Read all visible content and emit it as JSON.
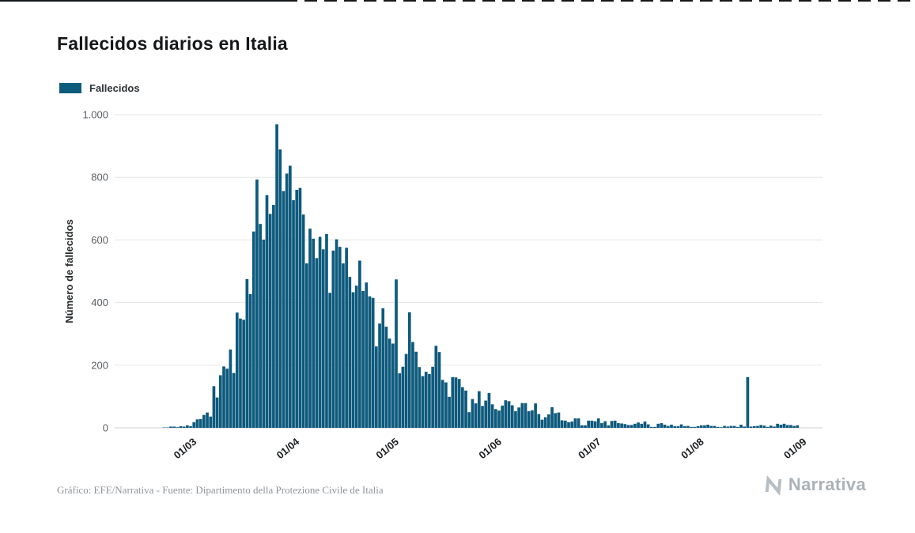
{
  "chart": {
    "title": "Fallecidos diarios en Italia",
    "legend_label": "Fallecidos",
    "ylabel": "Número de fallecidos"
  },
  "footer": {
    "credit": "Gráfico: EFE/Narrativa - Fuente: Dipartimento della Protezione Civile de Italia",
    "logo_text": "Narrativa"
  },
  "colors": {
    "bar": "#0e5a7d",
    "grid": "#e5e5e5",
    "axis_line": "#cfcfcf",
    "axis_text": "#5a5e62",
    "x_tick_text": "#1b1e20",
    "title_text": "#15181a",
    "credit_text": "#8f949a",
    "logo_text": "#aab2b9"
  },
  "chart_data": {
    "type": "bar",
    "title": "Fallecidos diarios en Italia",
    "ylabel": "Número de fallecidos",
    "xlabel": "",
    "ylim": [
      0,
      1000
    ],
    "grid": true,
    "legend_position": "top-left",
    "start_date": "22/02/2020",
    "frequency": "daily",
    "x_tick_labels": [
      "01/03",
      "01/04",
      "01/05",
      "01/06",
      "01/07",
      "01/08",
      "01/09"
    ],
    "x_tick_day_index": [
      8,
      39,
      69,
      100,
      130,
      161,
      192
    ],
    "y_ticks": [
      0,
      200,
      400,
      600,
      800,
      1000
    ],
    "y_tick_labels": [
      "0",
      "200",
      "400",
      "600",
      "800",
      "1.000"
    ],
    "x_domain_pad_days": [
      14,
      7
    ],
    "series": [
      {
        "name": "Fallecidos",
        "values": [
          1,
          1,
          4,
          4,
          2,
          5,
          4,
          8,
          5,
          18,
          27,
          28,
          41,
          49,
          36,
          133,
          97,
          168,
          196,
          189,
          250,
          175,
          368,
          349,
          345,
          475,
          427,
          627,
          793,
          651,
          601,
          743,
          683,
          712,
          969,
          889,
          756,
          812,
          837,
          727,
          760,
          766,
          681,
          525,
          636,
          604,
          542,
          610,
          570,
          619,
          431,
          566,
          602,
          578,
          525,
          575,
          482,
          433,
          454,
          534,
          437,
          464,
          420,
          415,
          260,
          333,
          382,
          323,
          285,
          269,
          474,
          174,
          195,
          236,
          369,
          274,
          243,
          194,
          165,
          179,
          172,
          195,
          262,
          242,
          153,
          145,
          99,
          162,
          161,
          156,
          130,
          119,
          50,
          92,
          78,
          117,
          70,
          87,
          111,
          75,
          60,
          55,
          71,
          88,
          85,
          72,
          53,
          65,
          79,
          79,
          53,
          56,
          78,
          44,
          26,
          34,
          43,
          66,
          47,
          49,
          24,
          23,
          18,
          20,
          30,
          30,
          8,
          8,
          23,
          23,
          21,
          30,
          15,
          21,
          8,
          22,
          23,
          15,
          14,
          12,
          9,
          9,
          13,
          17,
          13,
          20,
          11,
          3,
          3,
          13,
          15,
          10,
          6,
          10,
          5,
          5,
          11,
          5,
          6,
          3,
          3,
          5,
          8,
          8,
          10,
          6,
          6,
          3,
          2,
          6,
          4,
          6,
          6,
          3,
          10,
          4,
          162,
          4,
          5,
          6,
          9,
          7,
          3,
          7,
          4,
          13,
          10,
          13,
          9,
          9,
          6,
          8
        ]
      }
    ]
  }
}
